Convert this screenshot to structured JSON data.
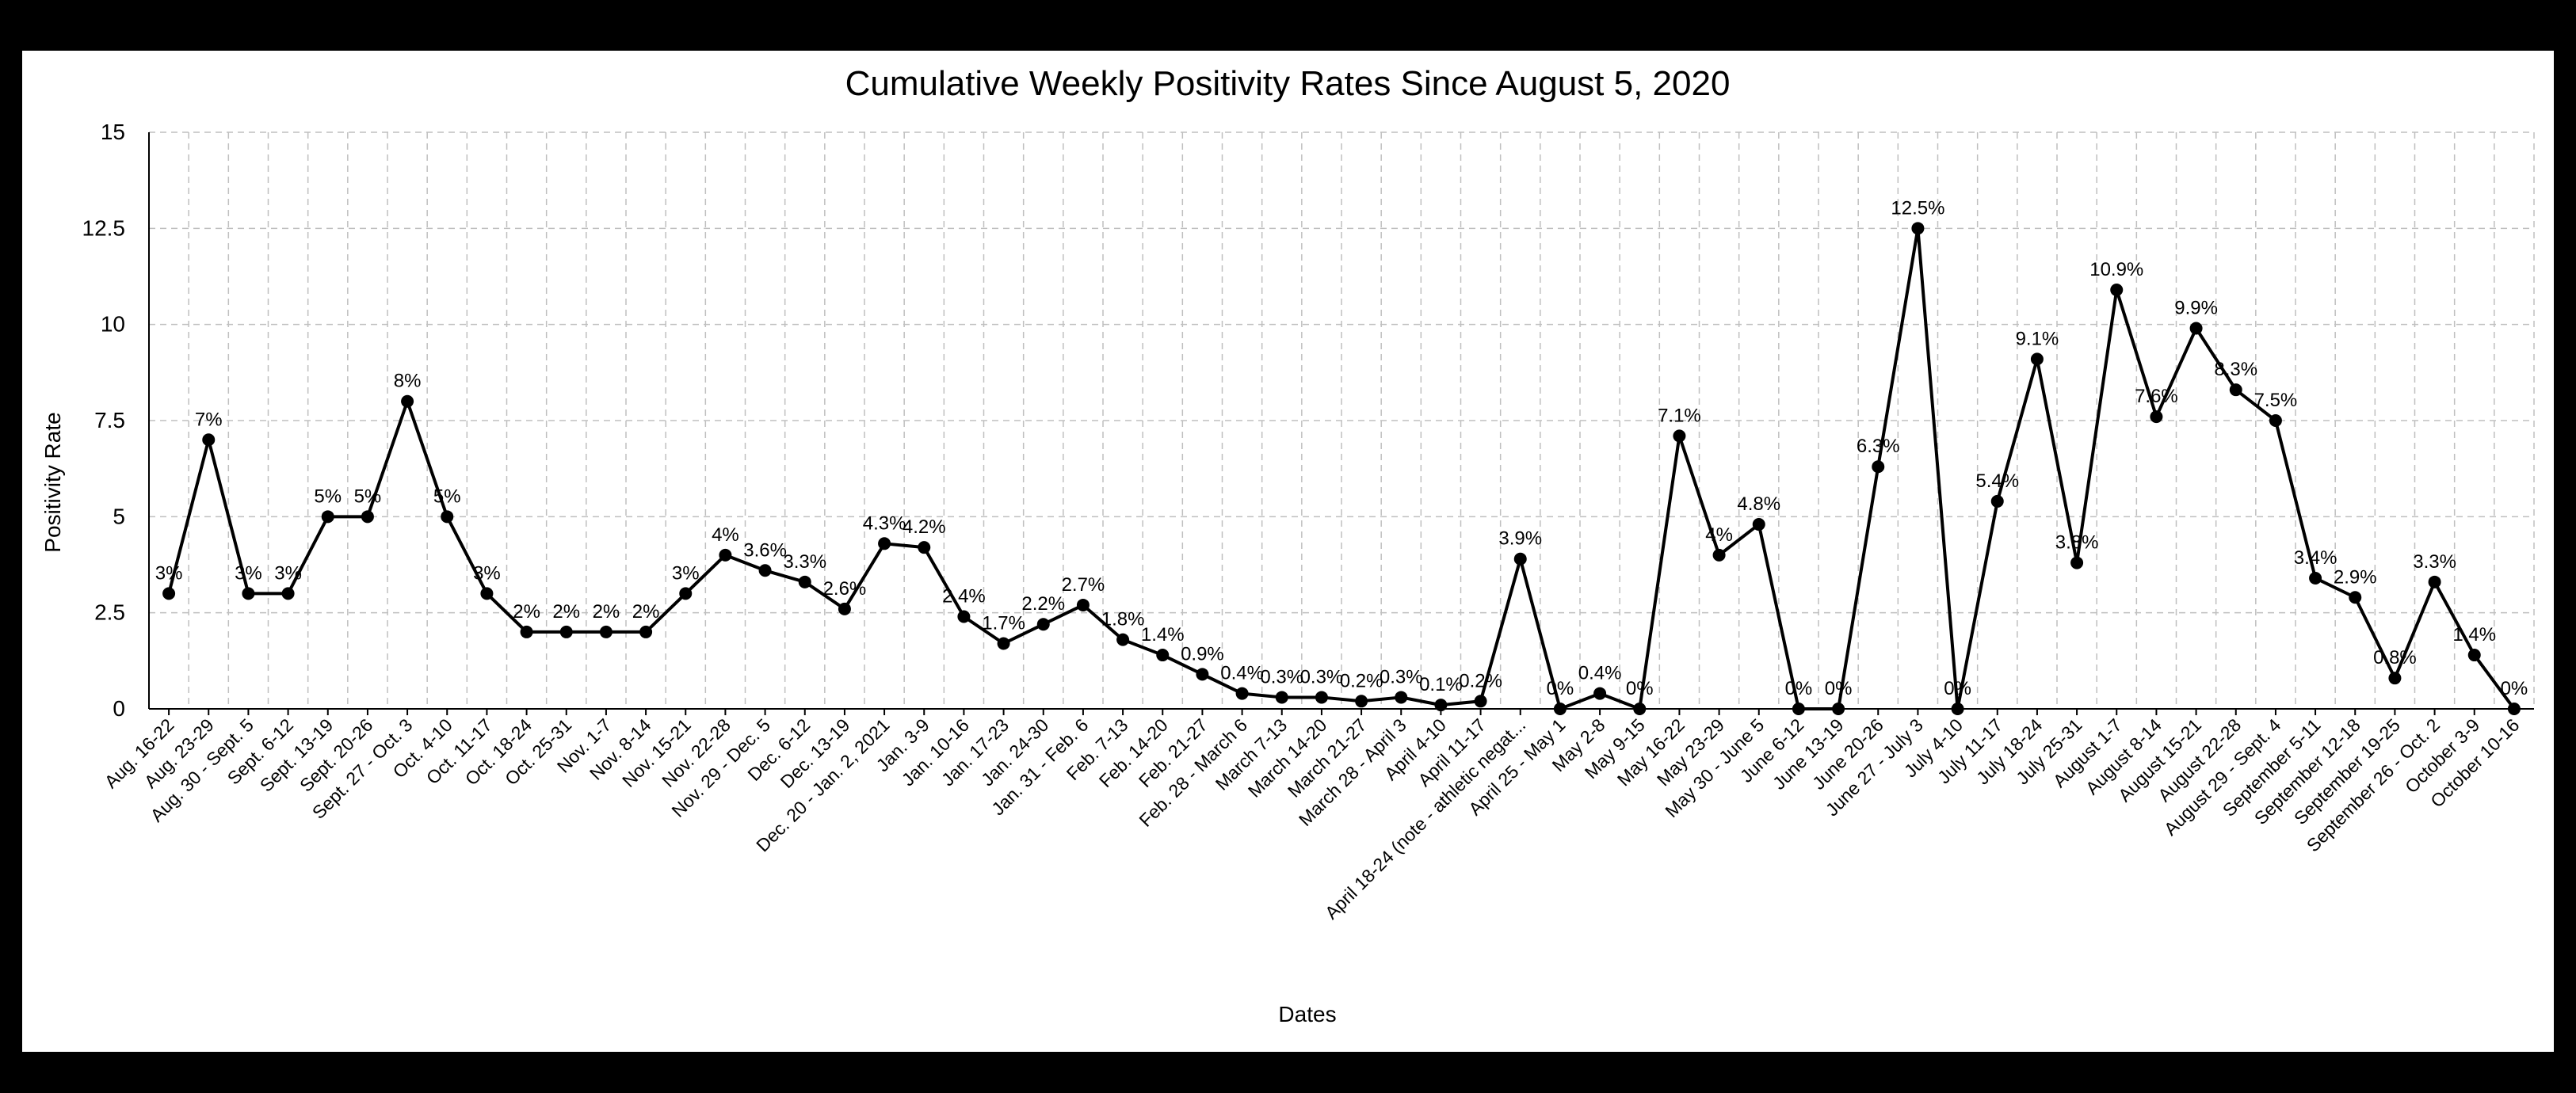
{
  "chart_data": {
    "type": "line",
    "title": "Cumulative Weekly Positivity Rates Since August 5, 2020",
    "xlabel": "Dates",
    "ylabel": "Positivity Rate",
    "ylim": [
      0,
      15
    ],
    "yticks": [
      "0",
      "2.5",
      "5",
      "7.5",
      "10",
      "12.5",
      "15"
    ],
    "grid": true,
    "categories": [
      "Aug. 16-22",
      "Aug. 23-29",
      "Aug. 30 - Sept. 5",
      "Sept. 6-12",
      "Sept. 13-19",
      "Sept. 20-26",
      "Sept. 27 - Oct. 3",
      "Oct. 4-10",
      "Oct. 11-17",
      "Oct. 18-24",
      "Oct. 25-31",
      "Nov. 1-7",
      "Nov. 8-14",
      "Nov. 15-21",
      "Nov. 22-28",
      "Nov. 29 - Dec. 5",
      "Dec. 6-12",
      "Dec. 13-19",
      "Dec. 20 - Jan. 2, 2021",
      "Jan. 3-9",
      "Jan. 10-16",
      "Jan. 17-23",
      "Jan. 24-30",
      "Jan. 31 - Feb. 6",
      "Feb. 7-13",
      "Feb. 14-20",
      "Feb. 21-27",
      "Feb. 28 - March 6",
      "March 7-13",
      "March 14-20",
      "March 21-27",
      "March 28 - April 3",
      "April 4-10",
      "April 11-17",
      "April 18-24 (note - athletic negat...",
      "April 25 - May 1",
      "May 2-8",
      "May 9-15",
      "May 16-22",
      "May 23-29",
      "May 30 - June 5",
      "June 6-12",
      "June 13-19",
      "June 20-26",
      "June 27 - July 3",
      "July 4-10",
      "July 11-17",
      "July 18-24",
      "July 25-31",
      "August 1-7",
      "August 8-14",
      "August 15-21",
      "August 22-28",
      "August 29 - Sept. 4",
      "September 5-11",
      "September 12-18",
      "September 19-25",
      "September 26 - Oct. 2",
      "October 3-9",
      "October 10-16"
    ],
    "values": [
      3,
      7,
      3,
      3,
      5,
      5,
      8,
      5,
      3,
      2,
      2,
      2,
      2,
      3,
      4,
      3.6,
      3.3,
      2.6,
      4.3,
      4.2,
      2.4,
      1.7,
      2.2,
      2.7,
      1.8,
      1.4,
      0.9,
      0.4,
      0.3,
      0.3,
      0.2,
      0.3,
      0.1,
      0.2,
      3.9,
      0,
      0.4,
      0,
      7.1,
      4,
      4.8,
      0,
      0,
      6.3,
      12.5,
      0,
      5.4,
      9.1,
      3.8,
      10.9,
      7.6,
      9.9,
      8.3,
      7.5,
      3.4,
      2.9,
      0.8,
      3.3,
      1.4,
      0
    ],
    "data_labels": [
      "3%",
      "7%",
      "3%",
      "3%",
      "5%",
      "5%",
      "8%",
      "5%",
      "3%",
      "2%",
      "2%",
      "2%",
      "2%",
      "3%",
      "4%",
      "3.6%",
      "3.3%",
      "2.6%",
      "4.3%",
      "4.2%",
      "2.4%",
      "1.7%",
      "2.2%",
      "2.7%",
      "1.8%",
      "1.4%",
      "0.9%",
      "0.4%",
      "0.3%",
      "0.3%",
      "0.2%",
      "0.3%",
      "0.1%",
      "0.2%",
      "3.9%",
      "0%",
      "0.4%",
      "0%",
      "7.1%",
      "4%",
      "4.8%",
      "0%",
      "0%",
      "6.3%",
      "12.5%",
      "0%",
      "5.4%",
      "9.1%",
      "3.8%",
      "10.9%",
      "7.6%",
      "9.9%",
      "8.3%",
      "7.5%",
      "3.4%",
      "2.9%",
      "0.8%",
      "3.3%",
      "1.4%",
      "0%"
    ],
    "line_color": "#000000",
    "grid_color": "#bfbfbf"
  }
}
